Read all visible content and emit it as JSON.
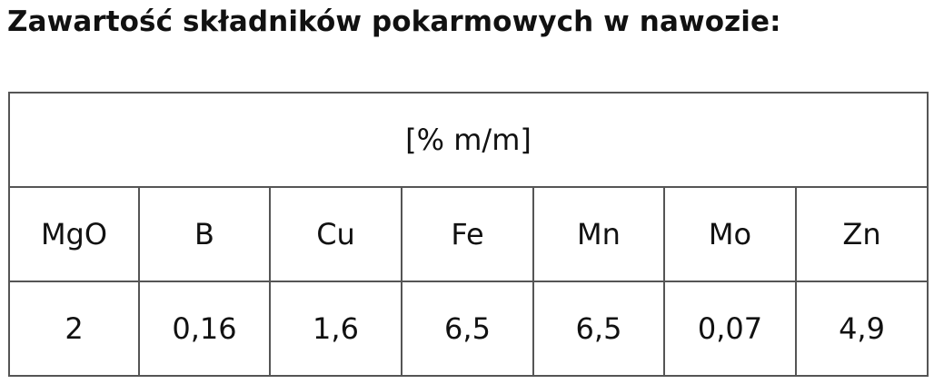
{
  "title": "Zawartość składników pokarmowych w nawozie:",
  "table": {
    "unit": "[% m/m]",
    "headers": [
      "MgO",
      "B",
      "Cu",
      "Fe",
      "Mn",
      "Mo",
      "Zn"
    ],
    "values": [
      "2",
      "0,16",
      "1,6",
      "6,5",
      "6,5",
      "0,07",
      "4,9"
    ]
  }
}
